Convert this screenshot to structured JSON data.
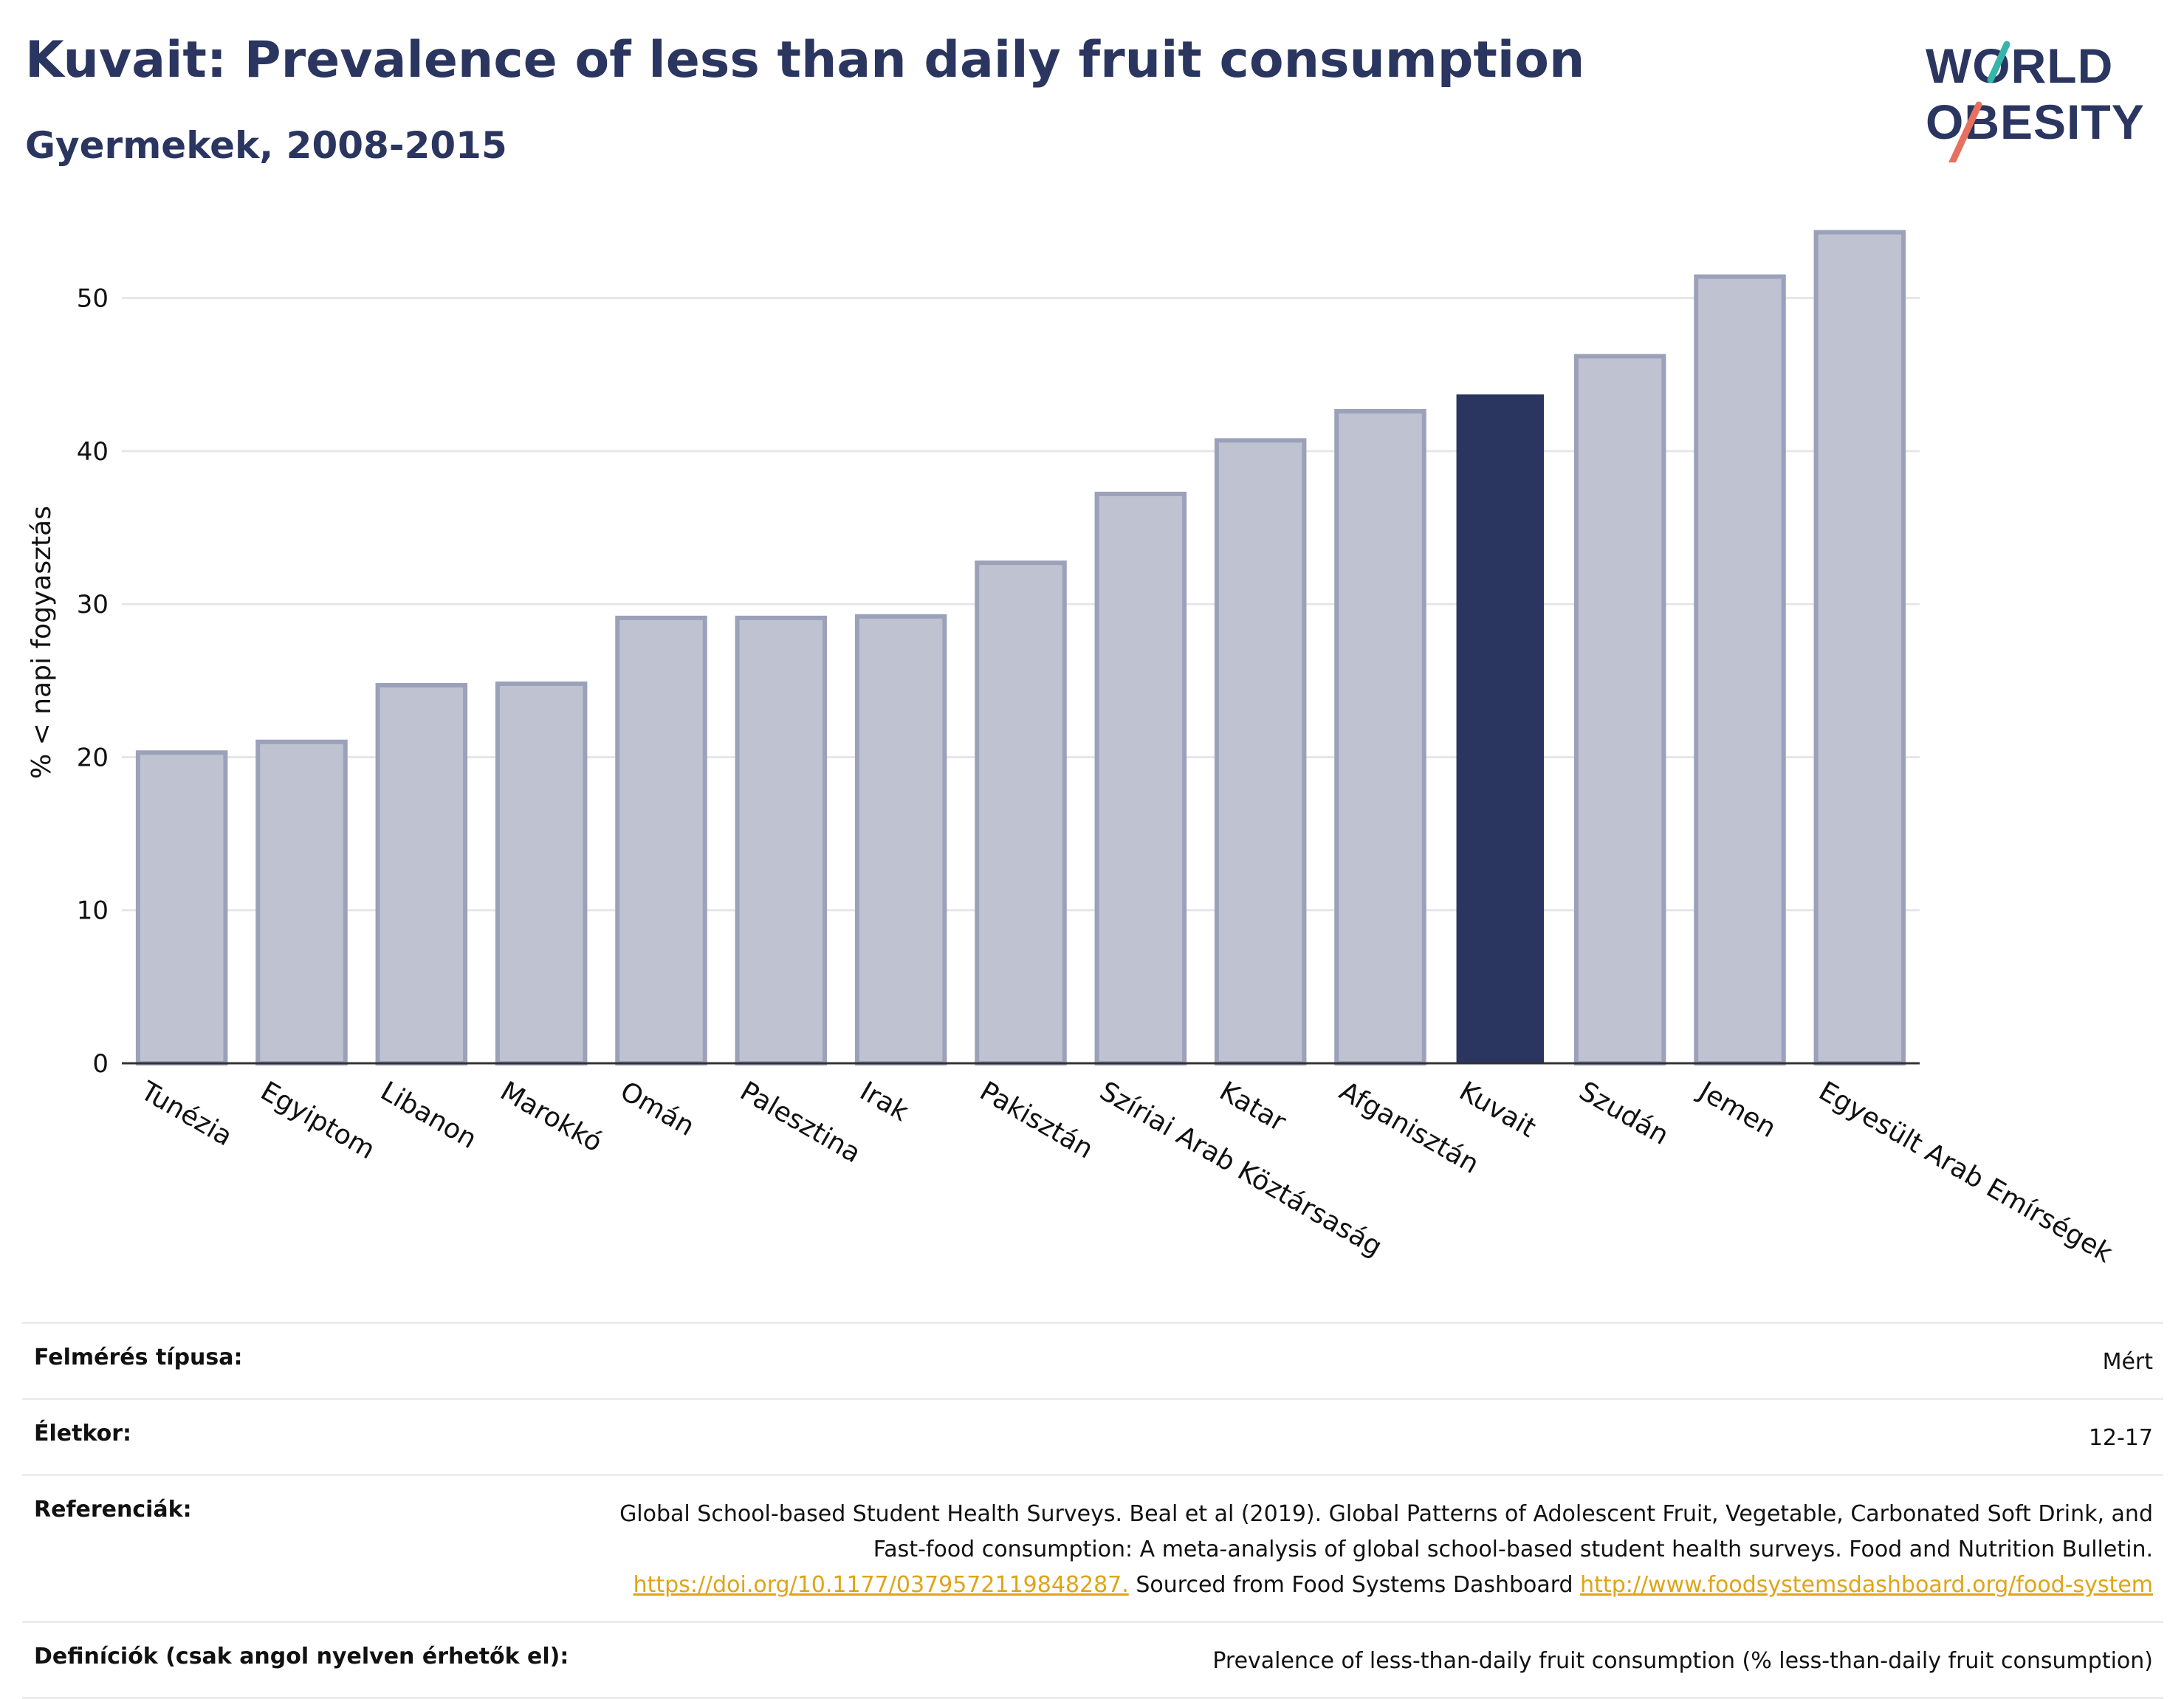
{
  "header": {
    "title": "Kuvait: Prevalence of less than daily fruit consumption",
    "subtitle": "Gyermekek, 2008-2015"
  },
  "logo": {
    "line1": "W_RLD",
    "line2": "_BESITY",
    "o_char": "O"
  },
  "colors": {
    "bar": "#bfc2d0",
    "bar_stroke": "#9ca1ba",
    "highlight": "#2a3560",
    "grid": "#e6e6ea",
    "logo_teal": "#36b5a8",
    "logo_coral": "#e8705e"
  },
  "chart_data": {
    "type": "bar",
    "categories": [
      "Tunézia",
      "Egyiptom",
      "Libanon",
      "Marokkó",
      "Omán",
      "Palesztina",
      "Irak",
      "Pakisztán",
      "Szíriai Arab Köztársaság",
      "Katar",
      "Afganisztán",
      "Kuvait",
      "Szudán",
      "Jemen",
      "Egyesült Arab Emírségek"
    ],
    "values": [
      20.3,
      21.0,
      24.7,
      24.8,
      29.1,
      29.1,
      29.2,
      32.7,
      37.2,
      40.7,
      42.6,
      43.7,
      46.2,
      51.4,
      54.3
    ],
    "highlight": "Kuvait",
    "ylabel": "% < napi fogyasztás",
    "ylim": [
      0,
      55
    ],
    "yticks": [
      0,
      10,
      20,
      30,
      40,
      50
    ],
    "grid": true
  },
  "info": {
    "survey_label": "Felmérés típusa:",
    "survey_value": "Mért",
    "age_label": "Életkor:",
    "age_value": "12-17",
    "ref_label": "Referenciák:",
    "ref_text1": "Global School-based Student Health Surveys. Beal et al (2019). Global Patterns of Adolescent Fruit, Vegetable, Carbonated Soft Drink, and Fast-food consumption: A meta-analysis of global school-based student health surveys. Food and Nutrition Bulletin.",
    "ref_link1": "https://doi.org/10.1177/0379572119848287.",
    "ref_text2": "Sourced from Food Systems Dashboard",
    "ref_link2": "http://www.foodsystemsdashboard.org/food-system",
    "def_label": "Definíciók (csak angol nyelven érhetők el):",
    "def_value": "Prevalence of less-than-daily fruit consumption (% less-than-daily fruit consumption)"
  }
}
